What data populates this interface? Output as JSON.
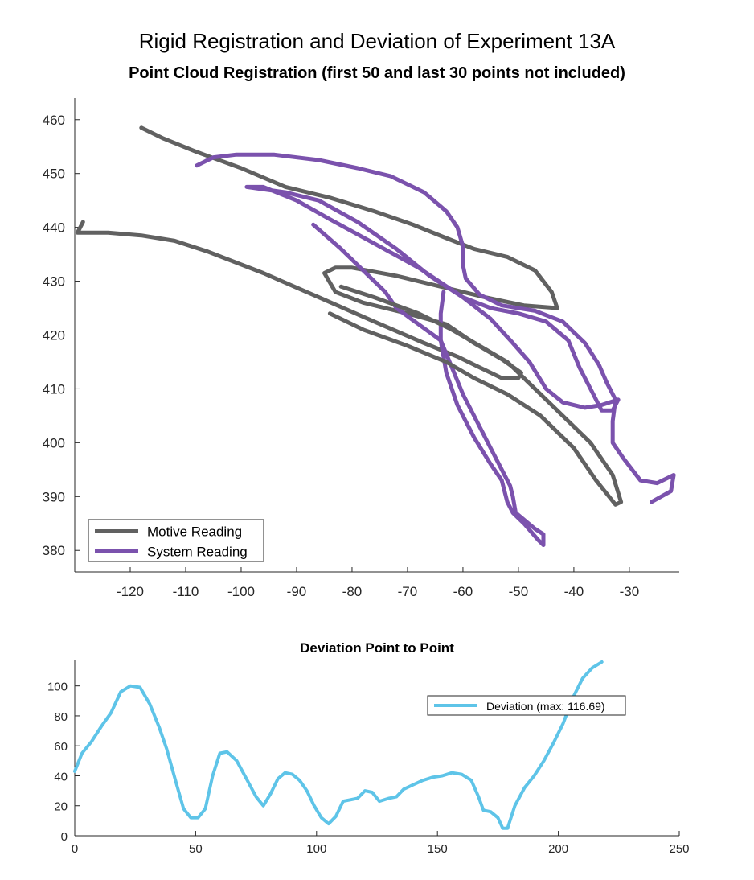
{
  "figure": {
    "title": "Rigid Registration and Deviation of Experiment 13A"
  },
  "chart_data": [
    {
      "type": "line",
      "title": "Point Cloud Registration (first 50 and last 30 points not included)",
      "xlabel": "",
      "ylabel": "",
      "xlim": [
        -130,
        -21
      ],
      "ylim": [
        376,
        464
      ],
      "x_ticks": [
        -120,
        -110,
        -100,
        -90,
        -80,
        -70,
        -60,
        -50,
        -40,
        -30
      ],
      "y_ticks": [
        380,
        390,
        400,
        410,
        420,
        430,
        440,
        450,
        460
      ],
      "grid": false,
      "legend": "bottom-left",
      "series": [
        {
          "name": "Motive Reading",
          "color": "#616161",
          "points": [
            [
              -118,
              458.5
            ],
            [
              -114,
              456.5
            ],
            [
              -108,
              454
            ],
            [
              -100,
              451
            ],
            [
              -92,
              447.5
            ],
            [
              -84,
              445.5
            ],
            [
              -76,
              443
            ],
            [
              -69,
              440.5
            ],
            [
              -63,
              438
            ],
            [
              -58,
              436
            ],
            [
              -52,
              434.5
            ],
            [
              -47,
              432
            ],
            [
              -44,
              428
            ],
            [
              -43,
              425
            ],
            [
              -49,
              425.5
            ],
            [
              -56,
              427
            ],
            [
              -64,
              429
            ],
            [
              -72,
              431
            ],
            [
              -80,
              432.5
            ],
            [
              -83,
              432.5
            ],
            [
              -85,
              431.5
            ],
            [
              -83,
              428
            ],
            [
              -78,
              426
            ],
            [
              -70,
              424
            ],
            [
              -63,
              422
            ],
            [
              -58,
              418.5
            ],
            [
              -53,
              415.5
            ],
            [
              -49.5,
              413
            ],
            [
              -50,
              412
            ],
            [
              -53,
              412
            ],
            [
              -57,
              414
            ],
            [
              -61,
              416
            ],
            [
              -67,
              418.5
            ],
            [
              -76,
              422.5
            ],
            [
              -86,
              427
            ],
            [
              -96,
              431.5
            ],
            [
              -106,
              435.5
            ],
            [
              -112,
              437.5
            ],
            [
              -118,
              438.5
            ],
            [
              -124,
              439
            ],
            [
              -127,
              439
            ],
            [
              -129.5,
              439
            ],
            [
              -128.5,
              441
            ]
          ]
        },
        {
          "name": "System Reading",
          "color": "#7b52ad",
          "points": [
            [
              -108,
              451.5
            ],
            [
              -105,
              453
            ],
            [
              -101,
              453.5
            ],
            [
              -94,
              453.5
            ],
            [
              -86,
              452.5
            ],
            [
              -79,
              451
            ],
            [
              -73,
              449.5
            ],
            [
              -67,
              446.5
            ],
            [
              -63,
              443
            ],
            [
              -61,
              440
            ],
            [
              -60,
              436.5
            ],
            [
              -60,
              433
            ],
            [
              -59.5,
              430.5
            ],
            [
              -57,
              427.5
            ],
            [
              -53,
              425.5
            ],
            [
              -47,
              424.5
            ],
            [
              -42,
              422.5
            ],
            [
              -38,
              418.5
            ],
            [
              -35.5,
              414.5
            ],
            [
              -34,
              411
            ],
            [
              -32.5,
              408
            ],
            [
              -33,
              404
            ],
            [
              -33,
              400
            ],
            [
              -31,
              397
            ],
            [
              -28,
              393
            ],
            [
              -25,
              392.5
            ],
            [
              -22,
              394
            ],
            [
              -22.5,
              391
            ],
            [
              -26,
              389
            ]
          ]
        },
        {
          "name": "",
          "color": "#7b52ad",
          "points": [
            [
              -99,
              447.5
            ],
            [
              -96,
              447.5
            ],
            [
              -90,
              445
            ],
            [
              -84,
              441.5
            ],
            [
              -76,
              437
            ],
            [
              -68,
              432.5
            ],
            [
              -60,
              427
            ],
            [
              -55,
              423
            ],
            [
              -51,
              418.5
            ],
            [
              -48,
              415
            ],
            [
              -45,
              410
            ],
            [
              -42,
              407.5
            ],
            [
              -38,
              406.5
            ],
            [
              -35,
              407
            ],
            [
              -32,
              408
            ],
            [
              -33,
              406
            ],
            [
              -35,
              406
            ],
            [
              -37,
              410
            ],
            [
              -39,
              414
            ],
            [
              -41,
              419
            ],
            [
              -45,
              422.5
            ],
            [
              -50,
              424
            ],
            [
              -55,
              425
            ],
            [
              -60,
              427
            ],
            [
              -66,
              431
            ],
            [
              -72,
              436
            ],
            [
              -79,
              441
            ],
            [
              -86,
              445
            ],
            [
              -92,
              446.5
            ],
            [
              -99,
              447.5
            ]
          ]
        },
        {
          "name": "",
          "color": "#7b52ad",
          "points": [
            [
              -87,
              440.5
            ],
            [
              -82,
              436
            ],
            [
              -78,
              432
            ],
            [
              -74,
              428
            ],
            [
              -72,
              425
            ],
            [
              -68,
              422
            ],
            [
              -64,
              419
            ],
            [
              -62,
              414
            ],
            [
              -60,
              409
            ],
            [
              -58,
              405
            ],
            [
              -55,
              399
            ],
            [
              -53,
              395
            ],
            [
              -51.5,
              392
            ],
            [
              -51,
              390
            ],
            [
              -50.5,
              387
            ],
            [
              -47,
              384
            ],
            [
              -45.5,
              383
            ],
            [
              -45.5,
              381
            ]
          ]
        },
        {
          "name": "",
          "color": "#7b52ad",
          "points": [
            [
              -63.5,
              428
            ],
            [
              -64,
              424
            ],
            [
              -64,
              419
            ],
            [
              -63,
              413
            ],
            [
              -61,
              407
            ],
            [
              -58,
              401
            ],
            [
              -55,
              396
            ],
            [
              -53,
              393
            ],
            [
              -52,
              389
            ],
            [
              -51,
              387
            ],
            [
              -49,
              385
            ],
            [
              -46.5,
              382
            ],
            [
              -45.5,
              381
            ]
          ]
        },
        {
          "name": "",
          "color": "#616161",
          "points": [
            [
              -82,
              429
            ],
            [
              -76,
              427
            ],
            [
              -68,
              424
            ],
            [
              -62,
              421
            ],
            [
              -57,
              418
            ],
            [
              -52,
              415
            ],
            [
              -47,
              410
            ],
            [
              -42,
              405
            ],
            [
              -37,
              400
            ],
            [
              -33,
              394
            ],
            [
              -31.5,
              389
            ],
            [
              -32.5,
              388.5
            ],
            [
              -36,
              393
            ],
            [
              -40,
              399
            ],
            [
              -46,
              405
            ],
            [
              -52,
              409
            ],
            [
              -58,
              412
            ],
            [
              -63,
              415
            ],
            [
              -70,
              418
            ],
            [
              -78,
              421
            ],
            [
              -84,
              424
            ]
          ]
        }
      ]
    },
    {
      "type": "line",
      "title": "Deviation Point to Point",
      "xlabel": "",
      "ylabel": "",
      "xlim": [
        0,
        250
      ],
      "ylim": [
        0,
        117
      ],
      "x_ticks": [
        0,
        50,
        100,
        150,
        200,
        250
      ],
      "y_ticks": [
        0,
        20,
        40,
        60,
        80,
        100
      ],
      "grid": false,
      "legend": "top-right",
      "series": [
        {
          "name": "Deviation (max: 116.69)",
          "color": "#5ec4e8",
          "points": [
            [
              0,
              43
            ],
            [
              3,
              55
            ],
            [
              7,
              63
            ],
            [
              11,
              73
            ],
            [
              15,
              82
            ],
            [
              19,
              96
            ],
            [
              23,
              100
            ],
            [
              27,
              99
            ],
            [
              31,
              88
            ],
            [
              35,
              72
            ],
            [
              38,
              58
            ],
            [
              42,
              35
            ],
            [
              45,
              18
            ],
            [
              48,
              12
            ],
            [
              51,
              12
            ],
            [
              54,
              18
            ],
            [
              57,
              40
            ],
            [
              60,
              55
            ],
            [
              63,
              56
            ],
            [
              67,
              50
            ],
            [
              71,
              38
            ],
            [
              75,
              26
            ],
            [
              78,
              20
            ],
            [
              81,
              28
            ],
            [
              84,
              38
            ],
            [
              87,
              42
            ],
            [
              90,
              41
            ],
            [
              93,
              37
            ],
            [
              96,
              30
            ],
            [
              99,
              20
            ],
            [
              102,
              12
            ],
            [
              105,
              8
            ],
            [
              108,
              13
            ],
            [
              111,
              23
            ],
            [
              114,
              24
            ],
            [
              117,
              25
            ],
            [
              120,
              30
            ],
            [
              123,
              29
            ],
            [
              126,
              23
            ],
            [
              130,
              25
            ],
            [
              133,
              26
            ],
            [
              136,
              31
            ],
            [
              140,
              34
            ],
            [
              144,
              37
            ],
            [
              148,
              39
            ],
            [
              152,
              40
            ],
            [
              156,
              42
            ],
            [
              160,
              41
            ],
            [
              164,
              37
            ],
            [
              167,
              26
            ],
            [
              169,
              17
            ],
            [
              172,
              16
            ],
            [
              175,
              12
            ],
            [
              177,
              5
            ],
            [
              179,
              5
            ],
            [
              182,
              20
            ],
            [
              186,
              32
            ],
            [
              190,
              40
            ],
            [
              194,
              50
            ],
            [
              198,
              62
            ],
            [
              202,
              75
            ],
            [
              206,
              92
            ],
            [
              210,
              105
            ],
            [
              214,
              112
            ],
            [
              218,
              116
            ]
          ]
        }
      ]
    }
  ]
}
